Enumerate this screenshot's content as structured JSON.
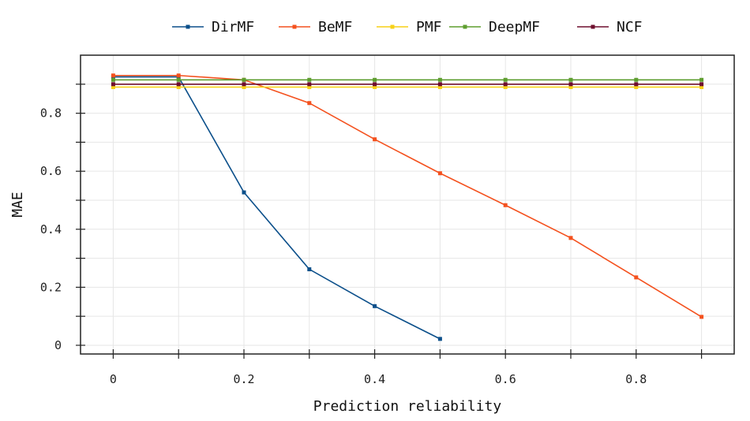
{
  "chart_data": {
    "type": "line",
    "title": "",
    "xlabel": "Prediction reliability",
    "ylabel": "MAE",
    "xlim": [
      -0.05,
      0.95
    ],
    "ylim": [
      -0.03,
      1.0
    ],
    "xticks": [
      0,
      0.1,
      0.2,
      0.3,
      0.4,
      0.5,
      0.6,
      0.7,
      0.8,
      0.9
    ],
    "xtick_labels": [
      "0",
      "",
      "0.2",
      "",
      "0.4",
      "",
      "0.6",
      "",
      "0.8",
      ""
    ],
    "yticks": [
      0,
      0.1,
      0.2,
      0.3,
      0.4,
      0.5,
      0.6,
      0.7,
      0.8,
      0.9
    ],
    "ytick_labels": [
      "0",
      "",
      "0.2",
      "",
      "0.4",
      "",
      "0.6",
      "",
      "0.8",
      ""
    ],
    "grid": true,
    "legend_position": "top",
    "series": [
      {
        "name": "DirMF",
        "color": "#0b4f8a",
        "x": [
          0,
          0.1,
          0.2,
          0.3,
          0.4,
          0.5
        ],
        "y": [
          0.925,
          0.925,
          0.527,
          0.262,
          0.135,
          0.022
        ]
      },
      {
        "name": "BeMF",
        "color": "#f4511e",
        "x": [
          0,
          0.1,
          0.2,
          0.3,
          0.4,
          0.5,
          0.6,
          0.7,
          0.8,
          0.9
        ],
        "y": [
          0.93,
          0.93,
          0.915,
          0.835,
          0.71,
          0.593,
          0.483,
          0.37,
          0.234,
          0.098
        ]
      },
      {
        "name": "PMF",
        "color": "#f7d117",
        "x": [
          0,
          0.1,
          0.2,
          0.3,
          0.4,
          0.5,
          0.6,
          0.7,
          0.8,
          0.9
        ],
        "y": [
          0.89,
          0.89,
          0.89,
          0.89,
          0.89,
          0.89,
          0.89,
          0.89,
          0.89,
          0.89
        ]
      },
      {
        "name": "DeepMF",
        "color": "#5e9e2f",
        "x": [
          0,
          0.1,
          0.2,
          0.3,
          0.4,
          0.5,
          0.6,
          0.7,
          0.8,
          0.9
        ],
        "y": [
          0.915,
          0.915,
          0.915,
          0.915,
          0.915,
          0.915,
          0.915,
          0.915,
          0.915,
          0.915
        ]
      },
      {
        "name": "NCF",
        "color": "#6e0f2e",
        "x": [
          0,
          0.1,
          0.2,
          0.3,
          0.4,
          0.5,
          0.6,
          0.7,
          0.8,
          0.9
        ],
        "y": [
          0.9,
          0.9,
          0.9,
          0.9,
          0.9,
          0.9,
          0.9,
          0.9,
          0.9,
          0.9
        ]
      }
    ]
  }
}
